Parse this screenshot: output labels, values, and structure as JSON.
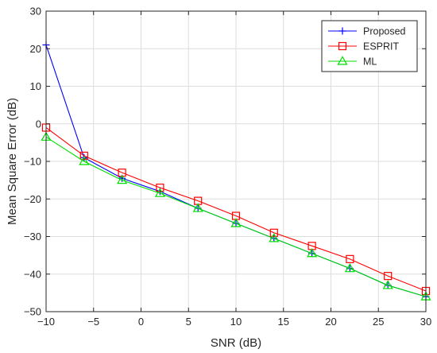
{
  "chart_data": {
    "type": "line",
    "xlabel": "SNR (dB)",
    "ylabel": "Mean Square Error (dB)",
    "xlim": [
      -10,
      30
    ],
    "ylim": [
      -50,
      30
    ],
    "xticks": [
      -10,
      -5,
      0,
      5,
      10,
      15,
      20,
      25,
      30
    ],
    "yticks": [
      30,
      20,
      10,
      0,
      -10,
      -20,
      -30,
      -40,
      -50
    ],
    "xtick_labels": [
      "−10",
      "−5",
      "0",
      "5",
      "10",
      "15",
      "20",
      "25",
      "30"
    ],
    "ytick_labels": [
      "30",
      "20",
      "10",
      "0",
      "−10",
      "−20",
      "−30",
      "−40",
      "−50"
    ],
    "grid": true,
    "legend_position": "top-right",
    "x": [
      -10,
      -6,
      -2,
      2,
      6,
      10,
      14,
      18,
      22,
      26,
      30
    ],
    "series": [
      {
        "name": "Proposed",
        "color": "#0000ff",
        "marker": "plus",
        "values": [
          21,
          -9,
          -14.5,
          -18,
          -22.5,
          -26.5,
          -30.5,
          -34.5,
          -38.5,
          -43,
          -46
        ]
      },
      {
        "name": "ESPRIT",
        "color": "#ff0000",
        "marker": "square",
        "values": [
          -1,
          -8.5,
          -13,
          -17,
          -20.5,
          -24.5,
          -29,
          -32.5,
          -36,
          -40.5,
          -44.5
        ]
      },
      {
        "name": "ML",
        "color": "#00dd00",
        "marker": "triangle",
        "values": [
          -3.5,
          -10,
          -15,
          -18.5,
          -22.5,
          -26.5,
          -30.5,
          -34.5,
          -38.5,
          -43,
          -46
        ]
      }
    ]
  }
}
